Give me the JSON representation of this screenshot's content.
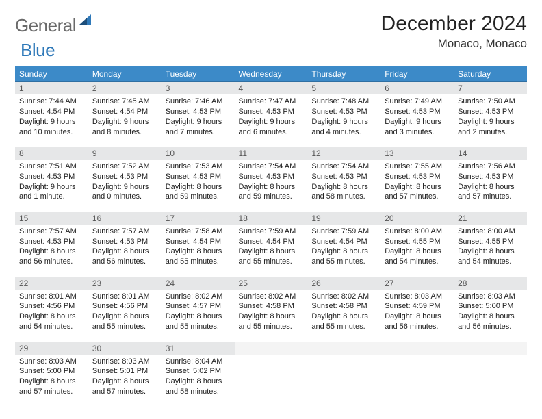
{
  "logo": {
    "word1": "General",
    "word2": "Blue"
  },
  "title": "December 2024",
  "location": "Monaco, Monaco",
  "colors": {
    "header_bg": "#3c8ac8",
    "header_text": "#ffffff",
    "daynum_bg": "#e6e7e8",
    "week_divider": "#2f6fa2",
    "body_text": "#222222",
    "logo_gray": "#6a6a6a",
    "logo_blue": "#2f79b9"
  },
  "dow": [
    "Sunday",
    "Monday",
    "Tuesday",
    "Wednesday",
    "Thursday",
    "Friday",
    "Saturday"
  ],
  "weeks": [
    [
      {
        "n": "1",
        "sr": "Sunrise: 7:44 AM",
        "ss": "Sunset: 4:54 PM",
        "dl": "Daylight: 9 hours and 10 minutes."
      },
      {
        "n": "2",
        "sr": "Sunrise: 7:45 AM",
        "ss": "Sunset: 4:54 PM",
        "dl": "Daylight: 9 hours and 8 minutes."
      },
      {
        "n": "3",
        "sr": "Sunrise: 7:46 AM",
        "ss": "Sunset: 4:53 PM",
        "dl": "Daylight: 9 hours and 7 minutes."
      },
      {
        "n": "4",
        "sr": "Sunrise: 7:47 AM",
        "ss": "Sunset: 4:53 PM",
        "dl": "Daylight: 9 hours and 6 minutes."
      },
      {
        "n": "5",
        "sr": "Sunrise: 7:48 AM",
        "ss": "Sunset: 4:53 PM",
        "dl": "Daylight: 9 hours and 4 minutes."
      },
      {
        "n": "6",
        "sr": "Sunrise: 7:49 AM",
        "ss": "Sunset: 4:53 PM",
        "dl": "Daylight: 9 hours and 3 minutes."
      },
      {
        "n": "7",
        "sr": "Sunrise: 7:50 AM",
        "ss": "Sunset: 4:53 PM",
        "dl": "Daylight: 9 hours and 2 minutes."
      }
    ],
    [
      {
        "n": "8",
        "sr": "Sunrise: 7:51 AM",
        "ss": "Sunset: 4:53 PM",
        "dl": "Daylight: 9 hours and 1 minute."
      },
      {
        "n": "9",
        "sr": "Sunrise: 7:52 AM",
        "ss": "Sunset: 4:53 PM",
        "dl": "Daylight: 9 hours and 0 minutes."
      },
      {
        "n": "10",
        "sr": "Sunrise: 7:53 AM",
        "ss": "Sunset: 4:53 PM",
        "dl": "Daylight: 8 hours and 59 minutes."
      },
      {
        "n": "11",
        "sr": "Sunrise: 7:54 AM",
        "ss": "Sunset: 4:53 PM",
        "dl": "Daylight: 8 hours and 59 minutes."
      },
      {
        "n": "12",
        "sr": "Sunrise: 7:54 AM",
        "ss": "Sunset: 4:53 PM",
        "dl": "Daylight: 8 hours and 58 minutes."
      },
      {
        "n": "13",
        "sr": "Sunrise: 7:55 AM",
        "ss": "Sunset: 4:53 PM",
        "dl": "Daylight: 8 hours and 57 minutes."
      },
      {
        "n": "14",
        "sr": "Sunrise: 7:56 AM",
        "ss": "Sunset: 4:53 PM",
        "dl": "Daylight: 8 hours and 57 minutes."
      }
    ],
    [
      {
        "n": "15",
        "sr": "Sunrise: 7:57 AM",
        "ss": "Sunset: 4:53 PM",
        "dl": "Daylight: 8 hours and 56 minutes."
      },
      {
        "n": "16",
        "sr": "Sunrise: 7:57 AM",
        "ss": "Sunset: 4:53 PM",
        "dl": "Daylight: 8 hours and 56 minutes."
      },
      {
        "n": "17",
        "sr": "Sunrise: 7:58 AM",
        "ss": "Sunset: 4:54 PM",
        "dl": "Daylight: 8 hours and 55 minutes."
      },
      {
        "n": "18",
        "sr": "Sunrise: 7:59 AM",
        "ss": "Sunset: 4:54 PM",
        "dl": "Daylight: 8 hours and 55 minutes."
      },
      {
        "n": "19",
        "sr": "Sunrise: 7:59 AM",
        "ss": "Sunset: 4:54 PM",
        "dl": "Daylight: 8 hours and 55 minutes."
      },
      {
        "n": "20",
        "sr": "Sunrise: 8:00 AM",
        "ss": "Sunset: 4:55 PM",
        "dl": "Daylight: 8 hours and 54 minutes."
      },
      {
        "n": "21",
        "sr": "Sunrise: 8:00 AM",
        "ss": "Sunset: 4:55 PM",
        "dl": "Daylight: 8 hours and 54 minutes."
      }
    ],
    [
      {
        "n": "22",
        "sr": "Sunrise: 8:01 AM",
        "ss": "Sunset: 4:56 PM",
        "dl": "Daylight: 8 hours and 54 minutes."
      },
      {
        "n": "23",
        "sr": "Sunrise: 8:01 AM",
        "ss": "Sunset: 4:56 PM",
        "dl": "Daylight: 8 hours and 55 minutes."
      },
      {
        "n": "24",
        "sr": "Sunrise: 8:02 AM",
        "ss": "Sunset: 4:57 PM",
        "dl": "Daylight: 8 hours and 55 minutes."
      },
      {
        "n": "25",
        "sr": "Sunrise: 8:02 AM",
        "ss": "Sunset: 4:58 PM",
        "dl": "Daylight: 8 hours and 55 minutes."
      },
      {
        "n": "26",
        "sr": "Sunrise: 8:02 AM",
        "ss": "Sunset: 4:58 PM",
        "dl": "Daylight: 8 hours and 55 minutes."
      },
      {
        "n": "27",
        "sr": "Sunrise: 8:03 AM",
        "ss": "Sunset: 4:59 PM",
        "dl": "Daylight: 8 hours and 56 minutes."
      },
      {
        "n": "28",
        "sr": "Sunrise: 8:03 AM",
        "ss": "Sunset: 5:00 PM",
        "dl": "Daylight: 8 hours and 56 minutes."
      }
    ],
    [
      {
        "n": "29",
        "sr": "Sunrise: 8:03 AM",
        "ss": "Sunset: 5:00 PM",
        "dl": "Daylight: 8 hours and 57 minutes."
      },
      {
        "n": "30",
        "sr": "Sunrise: 8:03 AM",
        "ss": "Sunset: 5:01 PM",
        "dl": "Daylight: 8 hours and 57 minutes."
      },
      {
        "n": "31",
        "sr": "Sunrise: 8:04 AM",
        "ss": "Sunset: 5:02 PM",
        "dl": "Daylight: 8 hours and 58 minutes."
      },
      null,
      null,
      null,
      null
    ]
  ]
}
